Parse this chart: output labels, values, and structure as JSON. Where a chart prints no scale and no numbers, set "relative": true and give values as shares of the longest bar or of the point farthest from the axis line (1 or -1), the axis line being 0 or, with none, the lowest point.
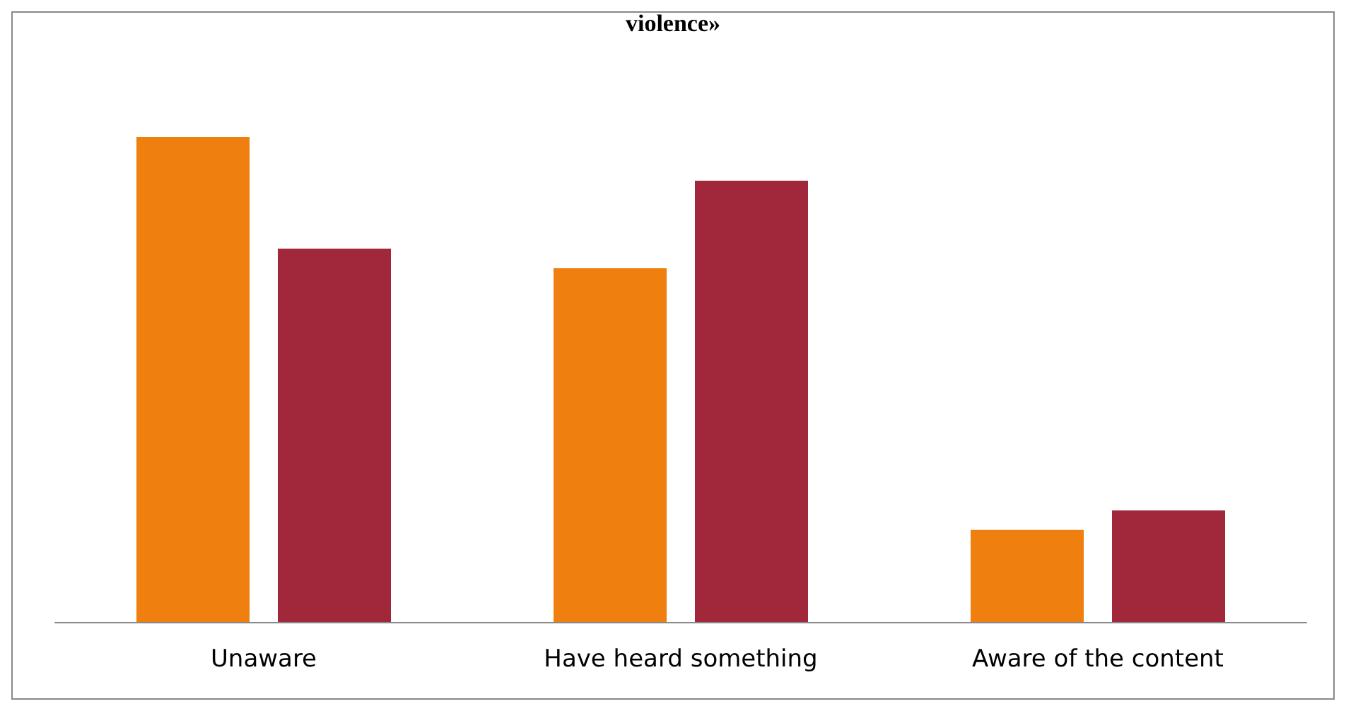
{
  "chart_data": {
    "type": "bar",
    "title": "violence»",
    "relative": true,
    "categories": [
      "Unaware",
      "Have heard something",
      "Aware of the content"
    ],
    "series": [
      {
        "color": "#ef7f0e",
        "values": [
          1,
          0.73,
          0.19
        ]
      },
      {
        "color": "#a0283a",
        "values": [
          0.77,
          0.91,
          0.23
        ]
      }
    ],
    "stacked": false
  }
}
